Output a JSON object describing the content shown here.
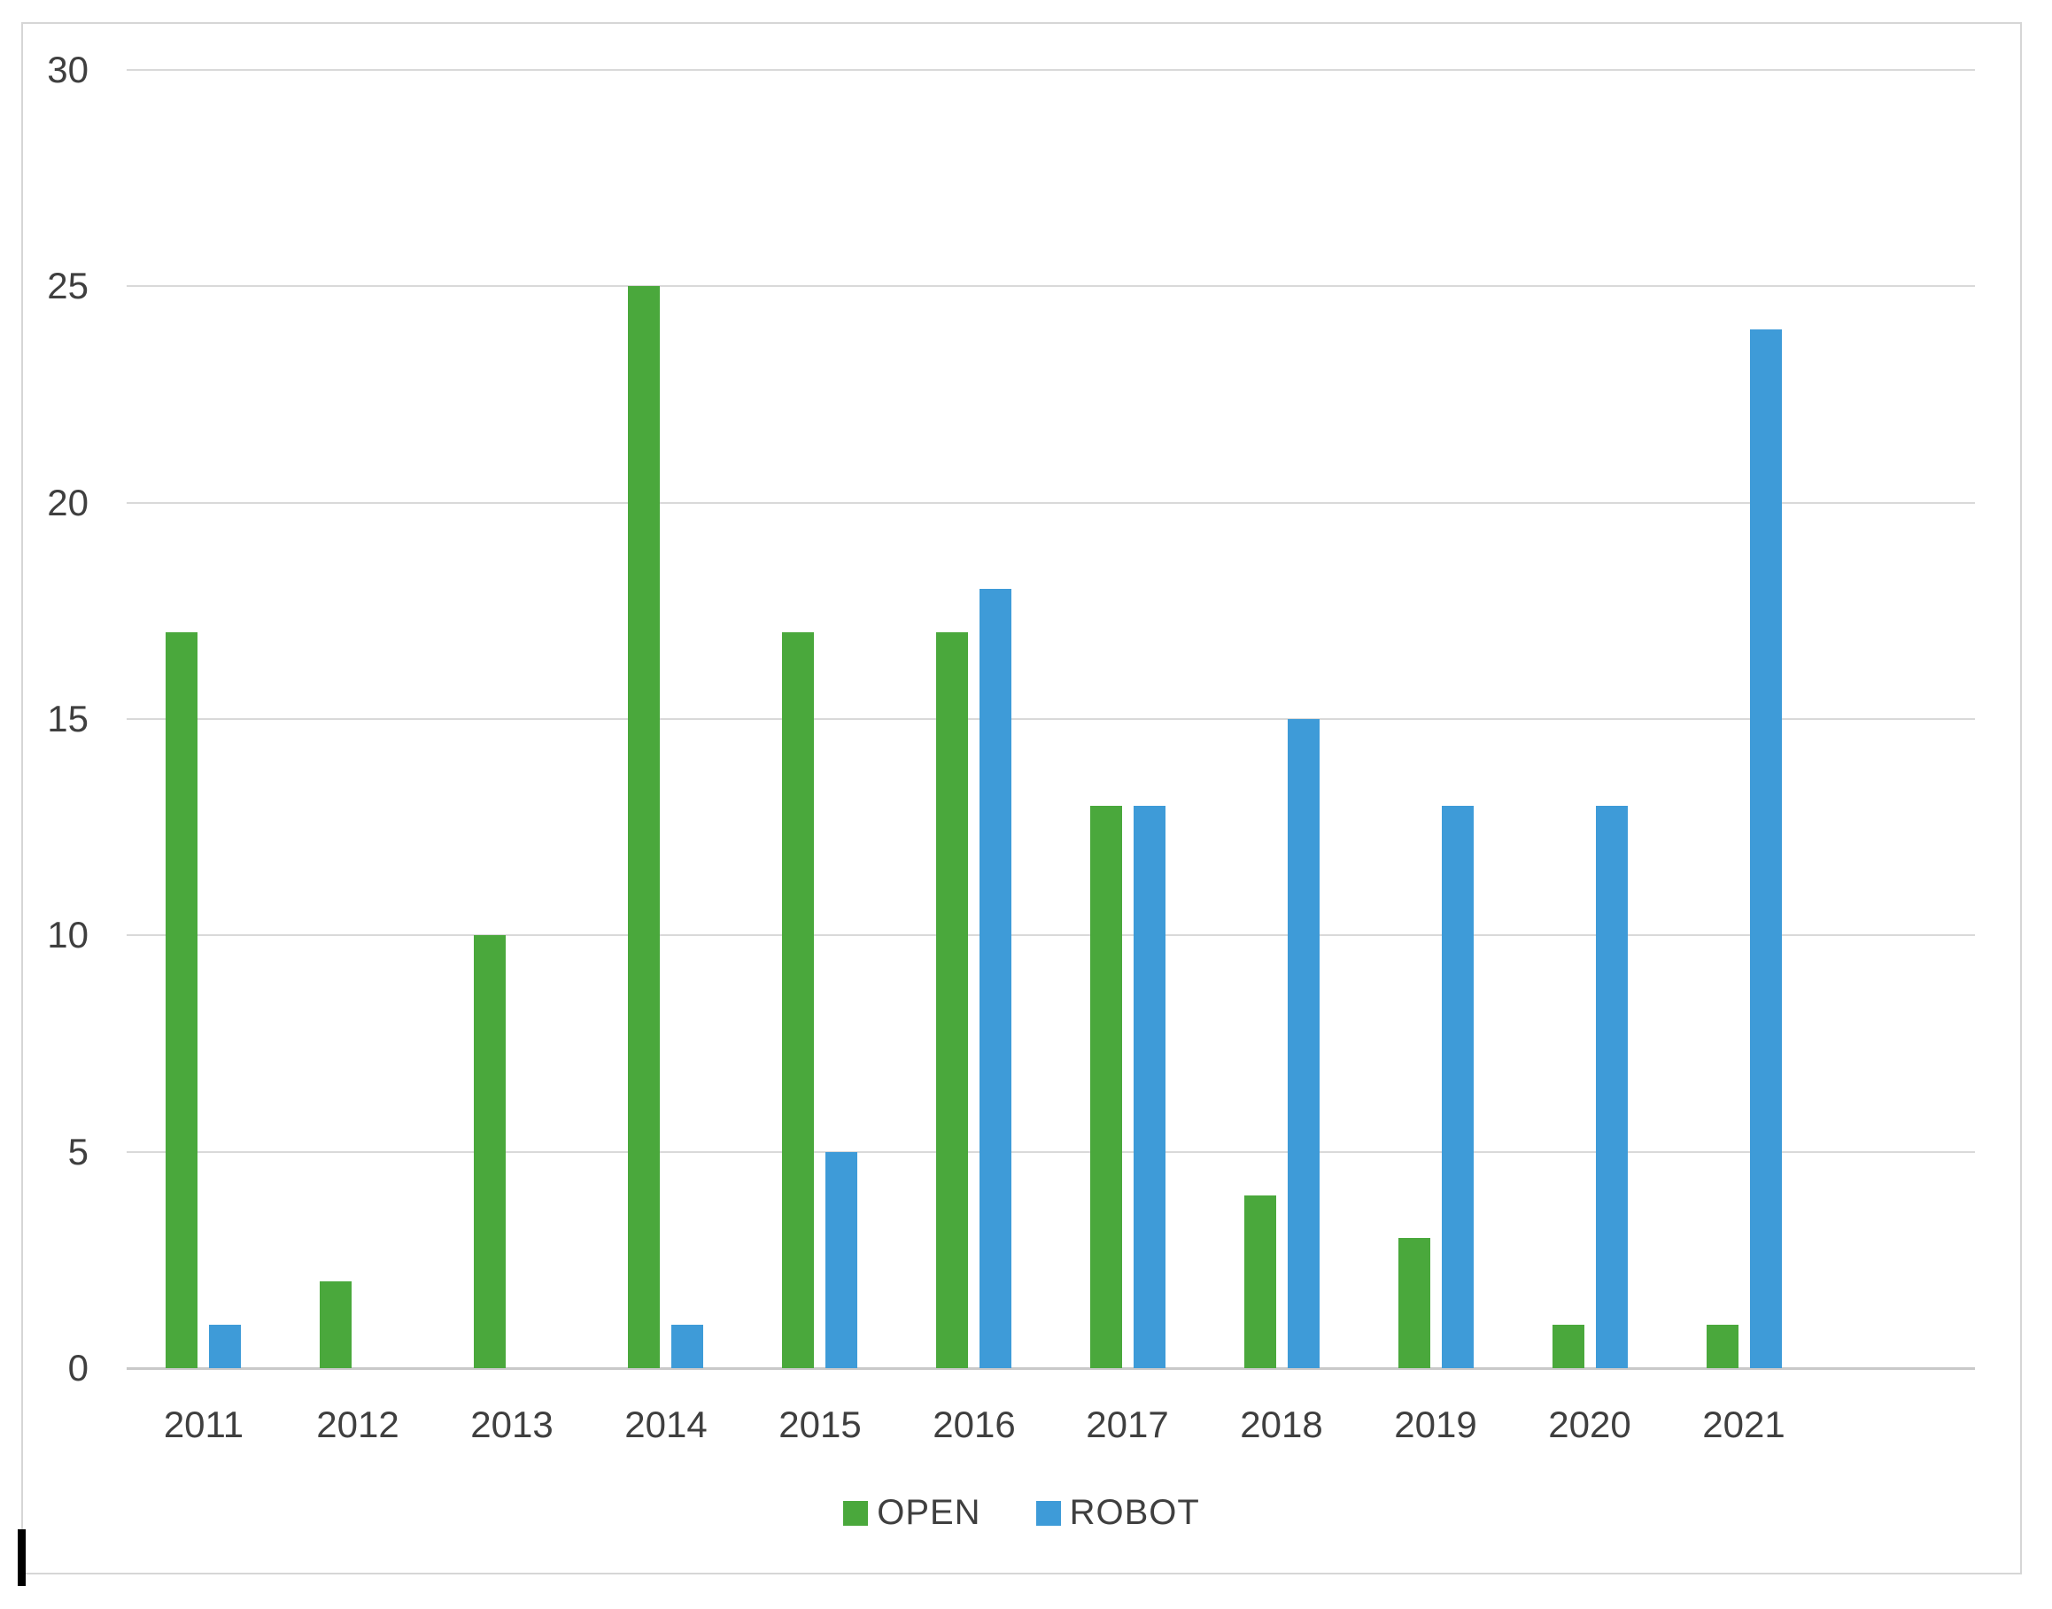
{
  "chart_data": {
    "type": "bar",
    "title": "",
    "categories": [
      "2011",
      "2012",
      "2013",
      "2014",
      "2015",
      "2016",
      "2017",
      "2018",
      "2019",
      "2020",
      "2021"
    ],
    "series": [
      {
        "name": "OPEN",
        "color": "#4aa83c",
        "values": [
          17,
          2,
          10,
          25,
          17,
          17,
          13,
          4,
          3,
          1,
          1
        ]
      },
      {
        "name": "ROBOT",
        "color": "#3e9bd8",
        "values": [
          1,
          0,
          0,
          1,
          5,
          18,
          13,
          15,
          13,
          13,
          24
        ]
      }
    ],
    "xlabel": "",
    "ylabel": "",
    "ylim": [
      0,
      30
    ],
    "yticks": [
      0,
      5,
      10,
      15,
      20,
      25,
      30
    ],
    "x_slots": 12,
    "grid": "horizontal",
    "legend_position": "bottom",
    "gridline_color": "#d9d9d9",
    "axis_line_color": "#c9c9c9",
    "chart_border_color": "#d6d6d6",
    "label_color": "#3f3f3f",
    "background_color": "#ffffff"
  }
}
